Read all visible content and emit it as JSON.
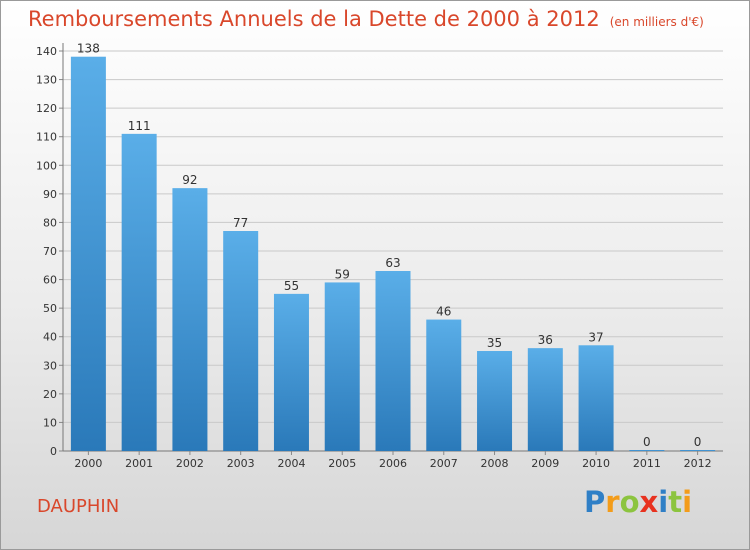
{
  "header": {
    "title": "Remboursements Annuels de la Dette de 2000 à 2012",
    "unit": "(en milliers d'€)"
  },
  "commune": "DAUPHIN",
  "logo": {
    "text": "Proxiti",
    "letters": [
      "P",
      "r",
      "o",
      "x",
      "i",
      "t",
      "i"
    ]
  },
  "colors": {
    "title": "#d9472b",
    "bar_top": "#5aaee8",
    "bar_bottom": "#2a79b9",
    "grid": "#c9c9c9"
  },
  "chart_data": {
    "type": "bar",
    "categories": [
      "2000",
      "2001",
      "2002",
      "2003",
      "2004",
      "2005",
      "2006",
      "2007",
      "2008",
      "2009",
      "2010",
      "2011",
      "2012"
    ],
    "values": [
      138,
      111,
      92,
      77,
      55,
      59,
      63,
      46,
      35,
      36,
      37,
      0,
      0
    ],
    "data_labels": [
      "138",
      "111",
      "92",
      "77",
      "55",
      "59",
      "63",
      "46",
      "35",
      "36",
      "37",
      "0",
      "0"
    ],
    "yticks": [
      0,
      10,
      20,
      30,
      40,
      50,
      60,
      70,
      80,
      90,
      100,
      110,
      120,
      130,
      140
    ],
    "ylim": [
      0,
      140
    ],
    "grid": true
  }
}
